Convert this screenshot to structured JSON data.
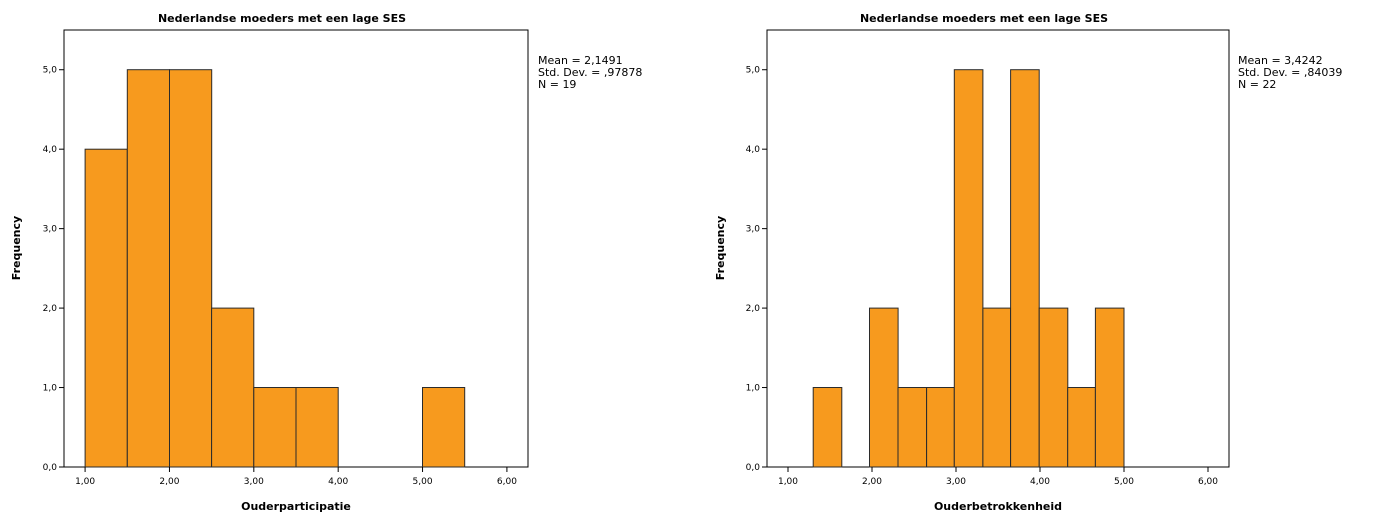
{
  "colors": {
    "bar_fill": "#F79A1E",
    "bar_stroke": "#2B2B2B"
  },
  "chart_data": [
    {
      "type": "bar",
      "title": "Nederlandse moeders met een lage SES",
      "xlabel": "Ouderparticipatie",
      "ylabel": "Frequency",
      "xlim": [
        0.75,
        6.25
      ],
      "ylim": [
        0,
        5.5
      ],
      "xticks": [
        1,
        2,
        3,
        4,
        5,
        6
      ],
      "xtick_labels": [
        "1,00",
        "2,00",
        "3,00",
        "4,00",
        "5,00",
        "6,00"
      ],
      "yticks": [
        0,
        1,
        2,
        3,
        4,
        5
      ],
      "ytick_labels": [
        "0,0",
        "1,0",
        "2,0",
        "3,0",
        "4,0",
        "5,0"
      ],
      "bins": [
        {
          "x0": 1.0,
          "x1": 1.5,
          "count": 4
        },
        {
          "x0": 1.5,
          "x1": 2.0,
          "count": 5
        },
        {
          "x0": 2.0,
          "x1": 2.5,
          "count": 5
        },
        {
          "x0": 2.5,
          "x1": 3.0,
          "count": 2
        },
        {
          "x0": 3.0,
          "x1": 3.5,
          "count": 1
        },
        {
          "x0": 3.5,
          "x1": 4.0,
          "count": 1
        },
        {
          "x0": 5.0,
          "x1": 5.5,
          "count": 1
        }
      ],
      "stats": [
        "Mean = 2,1491",
        "Std. Dev. = ,97878",
        "N = 19"
      ],
      "grid": false
    },
    {
      "type": "bar",
      "title": "Nederlandse moeders met een lage SES",
      "xlabel": "Ouderbetrokkenheid",
      "ylabel": "Frequency",
      "xlim": [
        0.75,
        6.25
      ],
      "ylim": [
        0,
        5.5
      ],
      "xticks": [
        1,
        2,
        3,
        4,
        5,
        6
      ],
      "xtick_labels": [
        "1,00",
        "2,00",
        "3,00",
        "4,00",
        "5,00",
        "6,00"
      ],
      "yticks": [
        0,
        1,
        2,
        3,
        4,
        5
      ],
      "ytick_labels": [
        "0,0",
        "1,0",
        "2,0",
        "3,0",
        "4,0",
        "5,0"
      ],
      "bins": [
        {
          "x0": 1.3,
          "x1": 1.64,
          "count": 1
        },
        {
          "x0": 1.97,
          "x1": 2.31,
          "count": 2
        },
        {
          "x0": 2.31,
          "x1": 2.65,
          "count": 1
        },
        {
          "x0": 2.65,
          "x1": 2.98,
          "count": 1
        },
        {
          "x0": 2.98,
          "x1": 3.32,
          "count": 5
        },
        {
          "x0": 3.32,
          "x1": 3.65,
          "count": 2
        },
        {
          "x0": 3.65,
          "x1": 3.99,
          "count": 5
        },
        {
          "x0": 3.99,
          "x1": 4.33,
          "count": 2
        },
        {
          "x0": 4.33,
          "x1": 4.66,
          "count": 1
        },
        {
          "x0": 4.66,
          "x1": 5.0,
          "count": 2
        }
      ],
      "stats": [
        "Mean = 3,4242",
        "Std. Dev. = ,84039",
        "N = 22"
      ],
      "grid": false
    }
  ]
}
